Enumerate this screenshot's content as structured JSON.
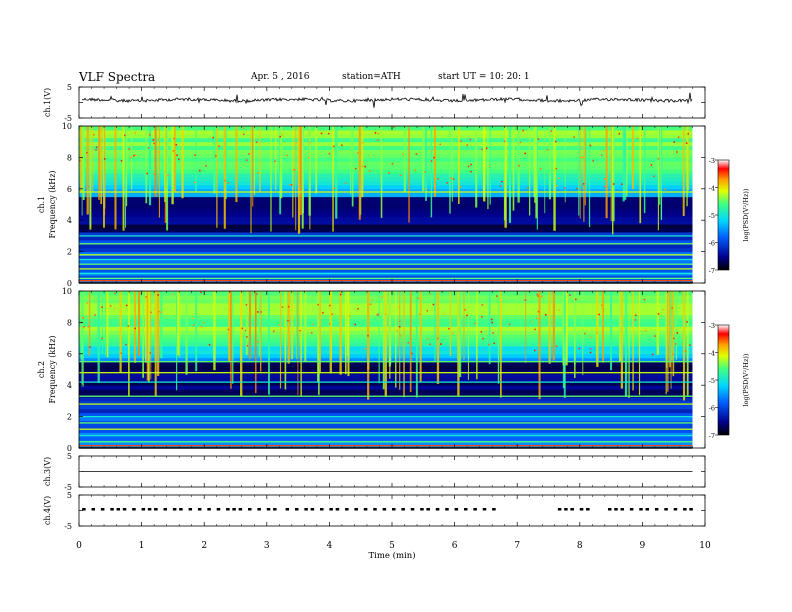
{
  "header": {
    "title": "VLF  Spectra",
    "date": "Apr. 5  , 2016",
    "station": "station=ATH",
    "start": "start  UT  =   10: 20: 1"
  },
  "chart_data": [
    {
      "id": "ch1-waveform",
      "type": "line",
      "ylabel": "ch.1(V)",
      "ylim": [
        -5,
        5
      ],
      "yticks": [
        "5",
        "-5"
      ],
      "xlim": [
        0,
        10
      ],
      "level": 0.8,
      "color": "#000000"
    },
    {
      "id": "ch1-spectrogram",
      "type": "heatmap",
      "ylabel": "ch.1\nFrequency  (kHz)",
      "ylabel_lines": [
        "ch.1",
        "Frequency  (kHz)"
      ],
      "ylim": [
        0,
        10
      ],
      "yticks": [
        "0",
        "2",
        "4",
        "6",
        "8",
        "10"
      ],
      "xlim": [
        0,
        9.8
      ],
      "colorbar": {
        "label": "log(PSD(V²/Hz))",
        "range": [
          -7,
          -3
        ],
        "ticks": [
          "-3",
          "-4",
          "-5",
          "-6",
          "-7"
        ]
      },
      "lines_khz": [
        0.3,
        0.6,
        0.9,
        1.2,
        1.5,
        1.8,
        2.5,
        3.0,
        5.8
      ]
    },
    {
      "id": "ch2-spectrogram",
      "type": "heatmap",
      "ylabel": "ch.2\nFrequency  (kHz)",
      "ylabel_lines": [
        "ch.2",
        "Frequency  (kHz)"
      ],
      "ylim": [
        0,
        10
      ],
      "yticks": [
        "0",
        "2",
        "4",
        "6",
        "8",
        "10"
      ],
      "xlim": [
        0,
        9.8
      ],
      "colorbar": {
        "label": "log(PSD(V²/Hz))",
        "range": [
          -7,
          -3
        ],
        "ticks": [
          "-3",
          "-4",
          "-5",
          "-6",
          "-7"
        ]
      },
      "lines_khz": [
        0.4,
        0.8,
        1.2,
        1.6,
        2.0,
        2.8,
        3.3,
        4.2,
        4.8,
        5.5
      ]
    },
    {
      "id": "ch3-waveform",
      "type": "line",
      "ylabel": "ch.3(V)",
      "ylim": [
        -5,
        5
      ],
      "yticks": [
        "5",
        "-5"
      ],
      "xlim": [
        0,
        10
      ],
      "level": 0,
      "color": "#000000"
    },
    {
      "id": "ch4-waveform",
      "type": "line",
      "ylabel": "ch.4(V)",
      "ylim": [
        -5,
        5
      ],
      "yticks": [
        "5",
        "-5"
      ],
      "xlim": [
        0,
        10
      ],
      "level": 0,
      "pulse_level": 0.8,
      "pulse_times": [
        0.05,
        0.2,
        0.35,
        0.5,
        0.6,
        0.7,
        0.85,
        1.0,
        1.1,
        1.2,
        1.35,
        1.5,
        1.6,
        1.75,
        1.9,
        2.05,
        2.2,
        2.35,
        2.45,
        2.55,
        2.7,
        2.85,
        3.0,
        3.1,
        3.3,
        3.45,
        3.6,
        3.7,
        3.85,
        4.0,
        4.1,
        4.25,
        4.4,
        4.55,
        4.7,
        4.85,
        5.0,
        5.15,
        5.3,
        5.45,
        5.55,
        5.7,
        5.85,
        6.0,
        6.15,
        6.3,
        6.45,
        6.6,
        7.65,
        7.75,
        7.85,
        8.0,
        8.1,
        8.45,
        8.55,
        8.65,
        8.8,
        8.95,
        9.05,
        9.2,
        9.35,
        9.5,
        9.65,
        9.75
      ]
    }
  ],
  "x_axis": {
    "label": "Time  (min)",
    "ticks": [
      "0",
      "1",
      "2",
      "3",
      "4",
      "5",
      "6",
      "7",
      "8",
      "9",
      "10"
    ],
    "range": [
      0,
      10
    ]
  }
}
